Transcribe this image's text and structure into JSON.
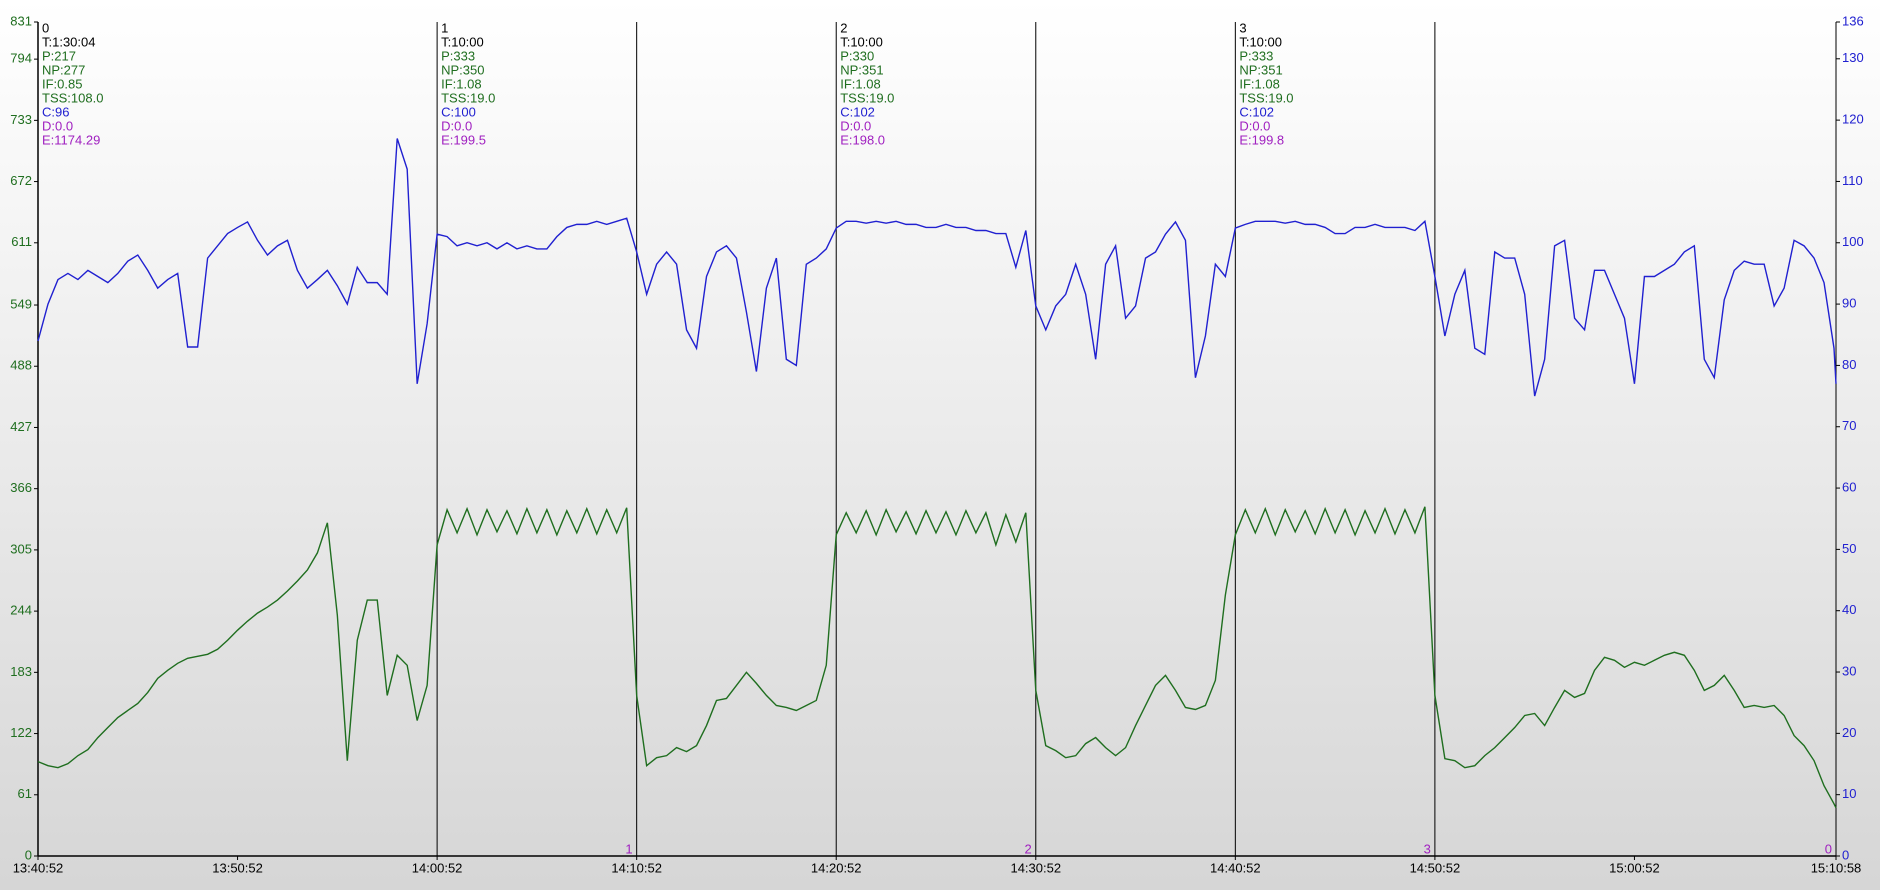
{
  "chart_data": {
    "type": "line",
    "xlim": [
      0,
      5406
    ],
    "xticks": [
      {
        "value": 0,
        "label": "13:40:52"
      },
      {
        "value": 600,
        "label": "13:50:52"
      },
      {
        "value": 1200,
        "label": "14:00:52"
      },
      {
        "value": 1800,
        "label": "14:10:52"
      },
      {
        "value": 2400,
        "label": "14:20:52"
      },
      {
        "value": 3000,
        "label": "14:30:52"
      },
      {
        "value": 3600,
        "label": "14:40:52"
      },
      {
        "value": 4200,
        "label": "14:50:52"
      },
      {
        "value": 4800,
        "label": "15:00:52"
      },
      {
        "value": 5406,
        "label": "15:10:58"
      }
    ],
    "ylim": [
      0,
      831
    ],
    "yticks": [
      0,
      61,
      122,
      183,
      244,
      305,
      366,
      427,
      488,
      549,
      611,
      672,
      733,
      794,
      831
    ],
    "y2lim": [
      0,
      136
    ],
    "y2ticks": [
      0,
      10,
      20,
      30,
      40,
      50,
      60,
      70,
      80,
      90,
      100,
      110,
      120,
      130,
      136
    ],
    "ytick_color": "#1f6e1f",
    "y2tick_color": "#2020d0",
    "x": [
      0,
      30,
      60,
      90,
      120,
      150,
      180,
      210,
      240,
      270,
      300,
      330,
      360,
      390,
      420,
      450,
      480,
      510,
      540,
      570,
      600,
      630,
      660,
      690,
      720,
      750,
      780,
      810,
      840,
      870,
      900,
      930,
      960,
      990,
      1020,
      1050,
      1080,
      1110,
      1140,
      1170,
      1200,
      1230,
      1260,
      1290,
      1320,
      1350,
      1380,
      1410,
      1440,
      1470,
      1500,
      1530,
      1560,
      1590,
      1620,
      1650,
      1680,
      1710,
      1740,
      1770,
      1800,
      1830,
      1860,
      1890,
      1920,
      1950,
      1980,
      2010,
      2040,
      2070,
      2100,
      2130,
      2160,
      2190,
      2220,
      2250,
      2280,
      2310,
      2340,
      2370,
      2400,
      2430,
      2460,
      2490,
      2520,
      2550,
      2580,
      2610,
      2640,
      2670,
      2700,
      2730,
      2760,
      2790,
      2820,
      2850,
      2880,
      2910,
      2940,
      2970,
      3000,
      3030,
      3060,
      3090,
      3120,
      3150,
      3180,
      3210,
      3240,
      3270,
      3300,
      3330,
      3360,
      3390,
      3420,
      3450,
      3480,
      3510,
      3540,
      3570,
      3600,
      3630,
      3660,
      3690,
      3720,
      3750,
      3780,
      3810,
      3840,
      3870,
      3900,
      3930,
      3960,
      3990,
      4020,
      4050,
      4080,
      4110,
      4140,
      4170,
      4200,
      4230,
      4260,
      4290,
      4320,
      4350,
      4380,
      4410,
      4440,
      4470,
      4500,
      4530,
      4560,
      4590,
      4620,
      4650,
      4680,
      4710,
      4740,
      4770,
      4800,
      4830,
      4860,
      4890,
      4920,
      4950,
      4980,
      5010,
      5040,
      5070,
      5100,
      5130,
      5160,
      5190,
      5220,
      5250,
      5280,
      5310,
      5340,
      5370,
      5400,
      5406
    ],
    "series": [
      {
        "color": "#1f6e1f",
        "axis": "y",
        "values": [
          94,
          90,
          88,
          92,
          100,
          106,
          118,
          128,
          138,
          145,
          152,
          163,
          177,
          185,
          192,
          197,
          199,
          201,
          206,
          215,
          225,
          234,
          242,
          248,
          255,
          264,
          274,
          285,
          302,
          332,
          240,
          95,
          215,
          255,
          255,
          160,
          200,
          190,
          135,
          170,
          310,
          345,
          322,
          346,
          320,
          345,
          323,
          344,
          321,
          346,
          322,
          345,
          320,
          344,
          322,
          346,
          321,
          345,
          322,
          347,
          160,
          90,
          98,
          100,
          108,
          104,
          110,
          130,
          155,
          157,
          170,
          183,
          172,
          160,
          150,
          148,
          145,
          150,
          155,
          190,
          320,
          342,
          322,
          344,
          320,
          345,
          323,
          343,
          321,
          344,
          322,
          343,
          320,
          344,
          322,
          342,
          310,
          340,
          313,
          342,
          165,
          110,
          105,
          98,
          100,
          112,
          118,
          108,
          100,
          108,
          130,
          150,
          170,
          180,
          165,
          148,
          146,
          150,
          175,
          260,
          320,
          345,
          322,
          346,
          320,
          345,
          323,
          344,
          321,
          346,
          322,
          345,
          320,
          344,
          322,
          346,
          321,
          345,
          322,
          348,
          160,
          97,
          95,
          88,
          90,
          100,
          108,
          118,
          128,
          140,
          142,
          130,
          148,
          165,
          158,
          162,
          185,
          198,
          195,
          188,
          193,
          190,
          195,
          200,
          203,
          200,
          185,
          165,
          170,
          180,
          165,
          148,
          150,
          148,
          150,
          140,
          120,
          110,
          95,
          70,
          52,
          48
        ]
      },
      {
        "color": "#2020d0",
        "axis": "y2",
        "values": [
          84,
          90,
          94,
          95,
          94,
          95.5,
          94.5,
          93.5,
          95,
          97,
          98,
          95.5,
          92.6,
          94,
          95,
          83,
          83,
          97.5,
          99.5,
          101.5,
          102.5,
          103.4,
          100.4,
          98,
          99.5,
          100.4,
          95.5,
          92.6,
          94,
          95.5,
          93,
          90,
          96,
          93.5,
          93.5,
          91.6,
          117,
          112,
          77,
          86.8,
          101.4,
          101,
          99.5,
          100,
          99.5,
          100,
          99,
          100,
          99,
          99.5,
          99,
          99,
          101,
          102.5,
          103,
          103,
          103.5,
          103,
          103.5,
          104,
          98.5,
          91.6,
          96.5,
          98.5,
          96.5,
          85.8,
          82.8,
          94.5,
          98.5,
          99.5,
          97.5,
          88.7,
          79,
          92.6,
          97.5,
          81,
          80,
          96.5,
          97.5,
          99,
          102.4,
          103.5,
          103.5,
          103.2,
          103.5,
          103.2,
          103.5,
          103,
          103,
          102.5,
          102.5,
          103,
          102.5,
          102.5,
          102,
          102,
          101.5,
          101.5,
          96,
          102,
          89.7,
          85.8,
          89.7,
          91.6,
          96.5,
          91.6,
          81,
          96.5,
          99.5,
          87.7,
          89.7,
          97.5,
          98.5,
          101.4,
          103.4,
          100.4,
          78,
          84.8,
          96.5,
          94.5,
          102.4,
          103,
          103.5,
          103.5,
          103.5,
          103.2,
          103.5,
          103,
          103,
          102.5,
          101.5,
          101.5,
          102.5,
          102.5,
          103,
          102.5,
          102.5,
          102.5,
          102,
          103.5,
          94.5,
          84.8,
          91.6,
          95.5,
          82.8,
          81.8,
          98.5,
          97.5,
          97.5,
          91.6,
          75,
          81,
          99.5,
          100.4,
          87.7,
          85.8,
          95.5,
          95.5,
          91.6,
          87.7,
          77,
          94.5,
          94.5,
          95.5,
          96.5,
          98.5,
          99.5,
          81,
          78,
          90.7,
          95.5,
          97,
          96.5,
          96.5,
          89.7,
          92.6,
          100.4,
          99.5,
          97.5,
          93.5,
          82.8,
          77
        ]
      }
    ],
    "stat_colors": [
      "#000000",
      "#1f6e1f",
      "#1f6e1f",
      "#1f6e1f",
      "#1f6e1f",
      "#2020d0",
      "#a020c0",
      "#a020c0"
    ],
    "lap_label_color": "#a020c0",
    "laps": [
      {
        "label": "0",
        "start": 0,
        "end": 5406,
        "stats": [
          "T:1:30:04",
          "P:217",
          "NP:277",
          "IF:0.85",
          "TSS:108.0",
          "C:96",
          "D:0.0",
          "E:1174.29"
        ]
      },
      {
        "label": "1",
        "start": 1200,
        "end": 1800,
        "stats": [
          "T:10:00",
          "P:333",
          "NP:350",
          "IF:1.08",
          "TSS:19.0",
          "C:100",
          "D:0.0",
          "E:199.5"
        ]
      },
      {
        "label": "2",
        "start": 2400,
        "end": 3000,
        "stats": [
          "T:10:00",
          "P:330",
          "NP:351",
          "IF:1.08",
          "TSS:19.0",
          "C:102",
          "D:0.0",
          "E:198.0"
        ]
      },
      {
        "label": "3",
        "start": 3600,
        "end": 4200,
        "stats": [
          "T:10:00",
          "P:333",
          "NP:351",
          "IF:1.08",
          "TSS:19.0",
          "C:102",
          "D:0.0",
          "E:199.8"
        ]
      }
    ]
  }
}
